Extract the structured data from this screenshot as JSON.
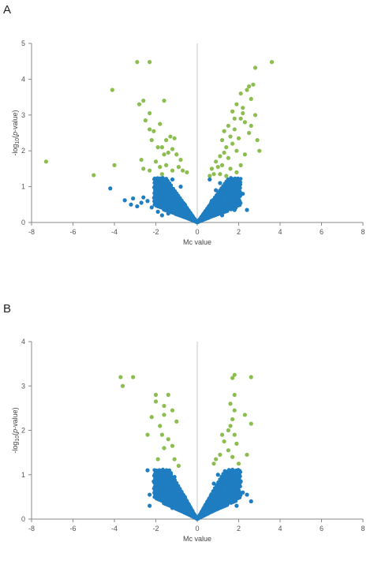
{
  "panels": {
    "a": {
      "letter": "A"
    },
    "b": {
      "letter": "B"
    }
  },
  "colors": {
    "non_significant": "#1f7dc1",
    "significant": "#8cbd4f",
    "zero_line": "#c8c8c8",
    "axis": "#8a8a8a"
  },
  "chart_data": [
    {
      "type": "scatter",
      "panel": "A",
      "xlabel": "Mc value",
      "ylabel": "-log10(p-value)",
      "xlim": [
        -8,
        8
      ],
      "ylim": [
        0,
        5
      ],
      "xticks": [
        -8,
        -6,
        -4,
        -2,
        0,
        2,
        4,
        6,
        8
      ],
      "yticks": [
        0,
        1,
        2,
        3,
        4,
        5
      ],
      "grid": false,
      "series": [
        {
          "group": "significant",
          "color": "#8cbd4f",
          "points": [
            [
              -7.3,
              1.7
            ],
            [
              -5,
              1.32
            ],
            [
              -4,
              1.6
            ],
            [
              -4.1,
              3.7
            ],
            [
              -2.9,
              4.48
            ],
            [
              -2.3,
              4.48
            ],
            [
              -2.8,
              3.3
            ],
            [
              -2.6,
              3.4
            ],
            [
              -2.3,
              3.05
            ],
            [
              -1.6,
              3.4
            ],
            [
              -2.5,
              2.85
            ],
            [
              -2.3,
              2.6
            ],
            [
              -2.1,
              2.55
            ],
            [
              -2.2,
              2.3
            ],
            [
              -1.8,
              2.75
            ],
            [
              -1.9,
              2.1
            ],
            [
              -1.7,
              2.1
            ],
            [
              -1.5,
              2.3
            ],
            [
              -1.3,
              2.4
            ],
            [
              -1.1,
              2.35
            ],
            [
              -1.6,
              1.9
            ],
            [
              -1.4,
              1.95
            ],
            [
              -1.2,
              2.05
            ],
            [
              -1.0,
              1.9
            ],
            [
              -0.8,
              1.75
            ],
            [
              -1.5,
              1.6
            ],
            [
              -1.8,
              1.55
            ],
            [
              -2.0,
              1.7
            ],
            [
              -2.7,
              1.75
            ],
            [
              -2.6,
              1.5
            ],
            [
              -2.3,
              1.45
            ],
            [
              -1.2,
              1.45
            ],
            [
              -0.9,
              1.55
            ],
            [
              -0.7,
              1.45
            ],
            [
              -1.7,
              1.35
            ],
            [
              -0.5,
              1.4
            ],
            [
              0.7,
              1.5
            ],
            [
              0.8,
              1.35
            ],
            [
              0.9,
              1.7
            ],
            [
              1.0,
              1.55
            ],
            [
              1.1,
              1.85
            ],
            [
              1.2,
              1.6
            ],
            [
              1.3,
              1.95
            ],
            [
              1.4,
              2.1
            ],
            [
              1.5,
              1.8
            ],
            [
              1.6,
              2.4
            ],
            [
              1.7,
              2.2
            ],
            [
              1.8,
              2.6
            ],
            [
              1.9,
              2.0
            ],
            [
              2.0,
              2.35
            ],
            [
              2.1,
              2.9
            ],
            [
              1.2,
              2.3
            ],
            [
              1.5,
              2.7
            ],
            [
              1.7,
              3.1
            ],
            [
              1.9,
              3.3
            ],
            [
              2.1,
              3.6
            ],
            [
              2.2,
              3.2
            ],
            [
              2.4,
              3.7
            ],
            [
              2.5,
              3.8
            ],
            [
              2.7,
              3.85
            ],
            [
              2.2,
              3.05
            ],
            [
              2.6,
              3.45
            ],
            [
              2.8,
              4.32
            ],
            [
              3.6,
              4.48
            ],
            [
              2.3,
              2.8
            ],
            [
              2.5,
              2.5
            ],
            [
              2.6,
              2.7
            ],
            [
              2.8,
              3.0
            ],
            [
              2.9,
              2.3
            ],
            [
              3.0,
              2.0
            ],
            [
              1.6,
              1.5
            ],
            [
              1.9,
              1.4
            ],
            [
              2.1,
              1.6
            ],
            [
              1.4,
              1.3
            ],
            [
              0.6,
              1.3
            ],
            [
              1.1,
              1.35
            ],
            [
              2.3,
              1.9
            ],
            [
              1.3,
              2.55
            ],
            [
              1.8,
              2.9
            ]
          ]
        },
        {
          "group": "non-significant",
          "color": "#1f7dc1",
          "points": [
            [
              -4.2,
              0.95
            ],
            [
              -3.1,
              0.67
            ],
            [
              -3.5,
              0.62
            ],
            [
              -3.2,
              0.5
            ],
            [
              -2.7,
              0.55
            ],
            [
              -2.9,
              0.45
            ],
            [
              -2.4,
              0.6
            ],
            [
              -2.2,
              0.42
            ],
            [
              -2.6,
              0.7
            ],
            [
              -1.9,
              0.3
            ],
            [
              -1.6,
              0.4
            ],
            [
              -1.3,
              0.55
            ],
            [
              -1.0,
              0.8
            ],
            [
              -0.8,
              1.0
            ],
            [
              -1.8,
              0.9
            ],
            [
              -1.5,
              1.1
            ],
            [
              -1.2,
              1.2
            ],
            [
              -0.9,
              0.6
            ],
            [
              -0.6,
              0.5
            ],
            [
              -0.4,
              0.3
            ],
            [
              -0.3,
              0.15
            ],
            [
              -0.2,
              0.08
            ],
            [
              -1.7,
              0.2
            ],
            [
              -1.4,
              0.25
            ],
            [
              -2.0,
              0.65
            ],
            [
              -1.1,
              0.35
            ],
            [
              0.3,
              0.1
            ],
            [
              0.5,
              0.3
            ],
            [
              0.7,
              0.6
            ],
            [
              0.9,
              0.9
            ],
            [
              1.1,
              1.1
            ],
            [
              1.3,
              0.7
            ],
            [
              1.5,
              0.5
            ],
            [
              1.8,
              0.35
            ],
            [
              2.0,
              0.5
            ],
            [
              2.2,
              0.8
            ],
            [
              1.0,
              0.4
            ],
            [
              1.6,
              1.0
            ],
            [
              1.9,
              0.7
            ],
            [
              0.6,
              1.2
            ],
            [
              2.4,
              0.35
            ],
            [
              1.2,
              0.2
            ]
          ]
        }
      ]
    },
    {
      "type": "scatter",
      "panel": "B",
      "xlabel": "Mc value",
      "ylabel": "-log10(p-value)",
      "xlim": [
        -8,
        8
      ],
      "ylim": [
        0,
        4
      ],
      "xticks": [
        -8,
        -6,
        -4,
        -2,
        0,
        2,
        4,
        6,
        8
      ],
      "yticks": [
        0,
        1,
        2,
        3,
        4
      ],
      "grid": false,
      "series": [
        {
          "group": "significant",
          "color": "#8cbd4f",
          "points": [
            [
              -3.7,
              3.2
            ],
            [
              -3.1,
              3.2
            ],
            [
              -3.6,
              3.0
            ],
            [
              -2.0,
              2.8
            ],
            [
              -1.4,
              2.8
            ],
            [
              -2.0,
              2.65
            ],
            [
              -1.6,
              2.55
            ],
            [
              -1.2,
              2.45
            ],
            [
              -1.6,
              2.35
            ],
            [
              -2.2,
              2.3
            ],
            [
              -1.8,
              2.1
            ],
            [
              -1.0,
              2.2
            ],
            [
              -1.7,
              1.9
            ],
            [
              -1.4,
              1.8
            ],
            [
              -2.4,
              1.9
            ],
            [
              -1.2,
              1.65
            ],
            [
              -1.6,
              1.6
            ],
            [
              -1.9,
              1.35
            ],
            [
              -1.1,
              1.35
            ],
            [
              -0.9,
              1.2
            ],
            [
              1.8,
              3.25
            ],
            [
              1.7,
              3.18
            ],
            [
              2.6,
              3.2
            ],
            [
              1.8,
              2.8
            ],
            [
              1.6,
              2.6
            ],
            [
              1.8,
              2.45
            ],
            [
              1.7,
              2.25
            ],
            [
              1.6,
              2.1
            ],
            [
              1.5,
              2.0
            ],
            [
              1.8,
              1.9
            ],
            [
              1.2,
              1.9
            ],
            [
              1.3,
              1.75
            ],
            [
              1.5,
              1.55
            ],
            [
              1.9,
              1.7
            ],
            [
              2.6,
              2.15
            ],
            [
              2.3,
              2.35
            ],
            [
              1.1,
              1.45
            ],
            [
              0.9,
              1.35
            ],
            [
              1.7,
              1.4
            ],
            [
              2.0,
              1.25
            ],
            [
              2.4,
              1.45
            ],
            [
              0.8,
              1.25
            ]
          ]
        },
        {
          "group": "non-significant",
          "color": "#1f7dc1",
          "points": [
            [
              -2.4,
              1.1
            ],
            [
              -2.1,
              0.85
            ],
            [
              -2.3,
              0.55
            ],
            [
              -2.3,
              0.3
            ],
            [
              -1.9,
              0.6
            ],
            [
              -1.7,
              0.9
            ],
            [
              -1.4,
              0.75
            ],
            [
              -1.1,
              0.95
            ],
            [
              -0.9,
              0.7
            ],
            [
              -0.6,
              0.5
            ],
            [
              -0.4,
              0.3
            ],
            [
              -0.2,
              0.1
            ],
            [
              -1.5,
              0.4
            ],
            [
              -1.2,
              0.25
            ],
            [
              0.3,
              0.15
            ],
            [
              0.5,
              0.4
            ],
            [
              0.8,
              0.8
            ],
            [
              1.0,
              1.0
            ],
            [
              1.3,
              0.7
            ],
            [
              1.6,
              0.5
            ],
            [
              1.9,
              0.3
            ],
            [
              2.2,
              0.6
            ],
            [
              2.4,
              0.55
            ],
            [
              2.6,
              0.4
            ],
            [
              2.1,
              0.85
            ],
            [
              1.2,
              0.35
            ]
          ]
        }
      ]
    }
  ]
}
